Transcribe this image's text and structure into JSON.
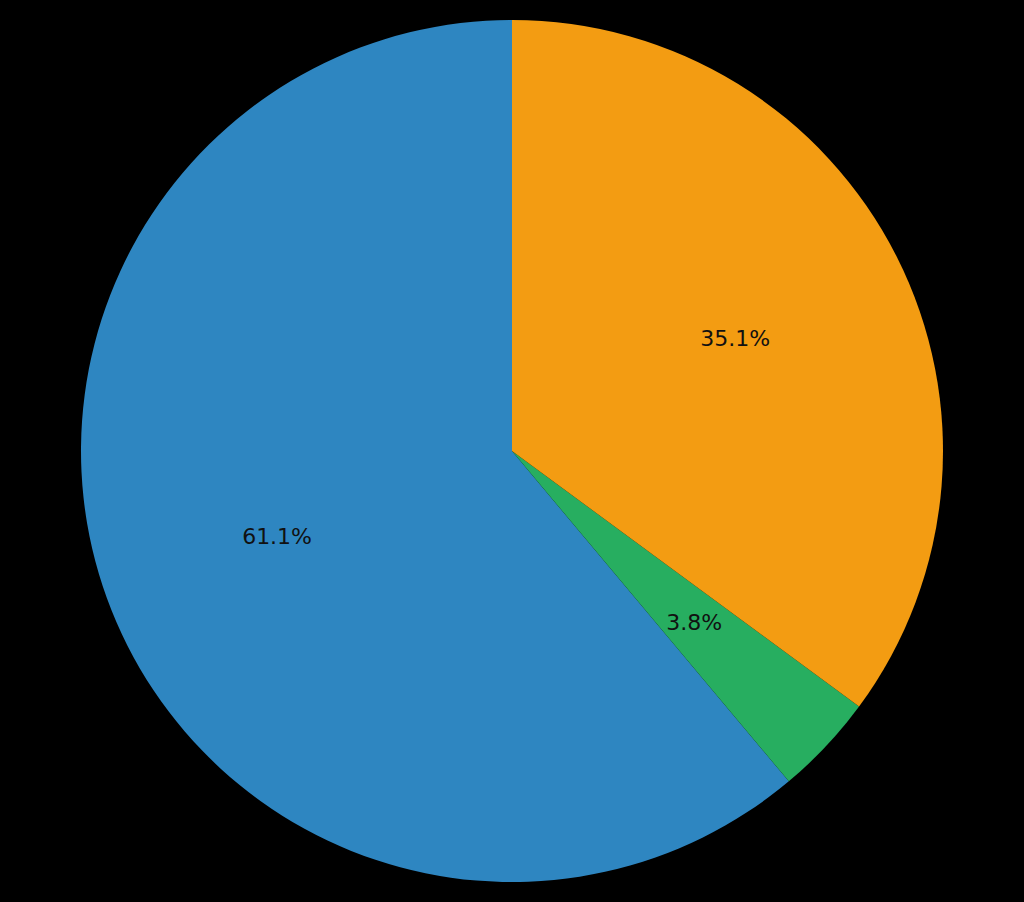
{
  "chart_data": {
    "type": "pie",
    "values": [
      61.1,
      3.8,
      35.1
    ],
    "value_labels": [
      "61.1%",
      "3.8%",
      "35.1%"
    ],
    "colors": [
      "#2e86c1",
      "#27ae60",
      "#f39c12"
    ],
    "data_labels": true
  }
}
